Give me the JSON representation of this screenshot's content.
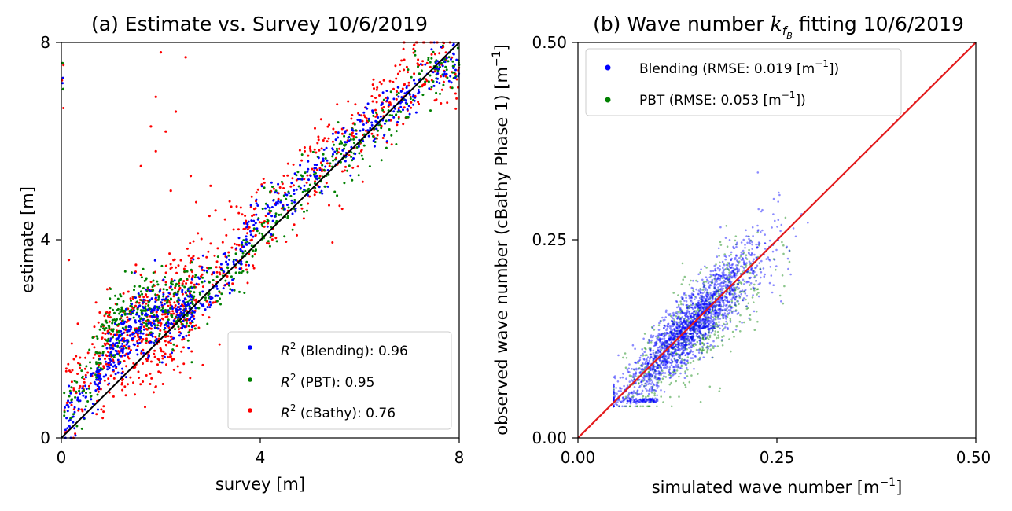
{
  "chart_data": [
    {
      "type": "scatter",
      "title": "(a) Estimate vs. Survey 10/6/2019",
      "xlabel": "survey [m]",
      "ylabel": "estimate [m]",
      "xlim": [
        0,
        8
      ],
      "ylim": [
        0,
        8
      ],
      "xticks": [
        "0",
        "4",
        "8"
      ],
      "yticks": [
        "0",
        "4",
        "8"
      ],
      "reference_line": {
        "x": [
          0,
          8
        ],
        "y": [
          0,
          8
        ],
        "color": "#000000"
      },
      "legend_position": "lower-right",
      "series": [
        {
          "name": "Blending",
          "legend_label": "(Blending):  0.96",
          "r2": 0.96,
          "color": "#0000ff",
          "spread": 0.25,
          "trend": [
            [
              0.05,
              0.3
            ],
            [
              0.5,
              0.9
            ],
            [
              1.0,
              1.7
            ],
            [
              1.5,
              2.2
            ],
            [
              2.0,
              2.5
            ],
            [
              2.5,
              2.6
            ],
            [
              3.0,
              3.0
            ],
            [
              3.5,
              3.6
            ],
            [
              4.0,
              4.5
            ],
            [
              4.5,
              4.8
            ],
            [
              5.0,
              5.3
            ],
            [
              5.5,
              5.8
            ],
            [
              6.0,
              6.2
            ],
            [
              6.5,
              6.6
            ],
            [
              7.0,
              7.0
            ],
            [
              7.5,
              7.5
            ],
            [
              8.0,
              7.6
            ]
          ]
        },
        {
          "name": "PBT",
          "legend_label": "(PBT):  0.95",
          "r2": 0.95,
          "color": "#008000",
          "spread": 0.28,
          "trend": [
            [
              0.05,
              0.3
            ],
            [
              0.5,
              1.2
            ],
            [
              1.0,
              2.2
            ],
            [
              1.5,
              2.6
            ],
            [
              2.0,
              2.6
            ],
            [
              2.5,
              2.6
            ],
            [
              3.0,
              2.9
            ],
            [
              3.5,
              3.4
            ],
            [
              4.0,
              4.3
            ],
            [
              4.5,
              4.7
            ],
            [
              5.0,
              5.1
            ],
            [
              5.5,
              5.6
            ],
            [
              6.0,
              6.0
            ],
            [
              6.5,
              6.4
            ],
            [
              7.0,
              6.9
            ],
            [
              7.5,
              7.4
            ],
            [
              8.0,
              7.5
            ]
          ]
        },
        {
          "name": "cBathy",
          "legend_label": "(cBathy):  0.76",
          "r2": 0.76,
          "color": "#ff0000",
          "spread": 0.45,
          "trend": [
            [
              0.05,
              1.0
            ],
            [
              0.5,
              1.3
            ],
            [
              1.0,
              1.7
            ],
            [
              1.5,
              2.0
            ],
            [
              2.0,
              2.3
            ],
            [
              2.5,
              2.6
            ],
            [
              3.0,
              3.2
            ],
            [
              3.5,
              3.8
            ],
            [
              4.0,
              4.4
            ],
            [
              4.5,
              4.9
            ],
            [
              5.0,
              5.4
            ],
            [
              5.5,
              5.8
            ],
            [
              6.0,
              6.2
            ],
            [
              6.5,
              6.8
            ],
            [
              7.0,
              7.3
            ],
            [
              7.5,
              7.7
            ],
            [
              8.0,
              7.2
            ]
          ],
          "outliers": [
            [
              1.6,
              5.5
            ],
            [
              1.8,
              6.3
            ],
            [
              1.9,
              6.9
            ],
            [
              2.0,
              7.8
            ],
            [
              2.1,
              6.2
            ],
            [
              2.3,
              6.6
            ],
            [
              2.5,
              7.7
            ],
            [
              2.6,
              5.3
            ],
            [
              3.0,
              5.1
            ],
            [
              3.1,
              4.6
            ],
            [
              1.5,
              3.5
            ],
            [
              1.6,
              3.3
            ],
            [
              1.7,
              2.9
            ],
            [
              0.15,
              3.6
            ],
            [
              2.2,
              5.0
            ],
            [
              1.9,
              5.8
            ]
          ]
        }
      ]
    },
    {
      "type": "scatter",
      "title": "(b) Wave number",
      "title_math": "k",
      "title_sub": "f",
      "title_subsub": "B",
      "title_suffix": "fitting 10/6/2019",
      "xlabel": "simulated wave number [m",
      "xlabel_sup": "−1",
      "xlabel_suffix": "]",
      "ylabel": "observed wave number (cBathy Phase 1) [m",
      "ylabel_sup": "−1",
      "ylabel_suffix": "]",
      "xlim": [
        0,
        0.5
      ],
      "ylim": [
        0,
        0.5
      ],
      "xticks": [
        "0.00",
        "0.25",
        "0.50"
      ],
      "yticks": [
        "0.00",
        "0.25",
        "0.50"
      ],
      "reference_line": {
        "x": [
          0,
          0.5
        ],
        "y": [
          0,
          0.5
        ],
        "color": "#e31a1c"
      },
      "legend_position": "upper-left",
      "series": [
        {
          "name": "Blending",
          "legend_label": "Blending (RMSE:   0.019 [m",
          "legend_sup": "−1",
          "legend_end": "])",
          "rmse": 0.019,
          "color": "#0000ff",
          "center": [
            0.14,
            0.145
          ],
          "count": 2200,
          "noise": 0.02
        },
        {
          "name": "PBT",
          "legend_label": "PBT (RMSE:   0.053 [m",
          "legend_sup": "−1",
          "legend_end": "])",
          "rmse": 0.053,
          "color": "#008000",
          "center": [
            0.15,
            0.14
          ],
          "count": 600,
          "noise": 0.03
        }
      ]
    }
  ]
}
